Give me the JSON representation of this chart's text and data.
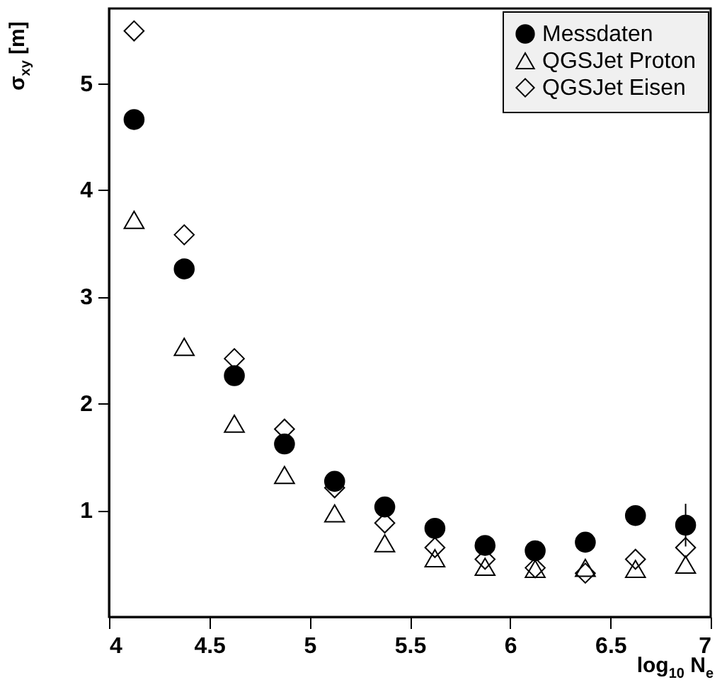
{
  "chart_data": {
    "type": "scatter",
    "xlabel": "log$_{10}$ N$_{e}$",
    "ylabel": "σ$_{xy}$ [m]",
    "x": [
      4.125,
      4.375,
      4.625,
      4.875,
      5.125,
      5.375,
      5.625,
      5.875,
      6.125,
      6.375,
      6.625,
      6.875
    ],
    "series": [
      {
        "name": "Messdaten",
        "color": "#000000",
        "marker": "circle",
        "values": [
          4.66,
          3.26,
          2.26,
          1.62,
          1.27,
          1.03,
          0.83,
          0.67,
          0.62,
          0.7,
          0.95,
          0.86
        ],
        "errors": [
          null,
          null,
          null,
          null,
          null,
          null,
          null,
          null,
          null,
          null,
          null,
          0.2
        ]
      },
      {
        "name": "QGSJet Proton",
        "color": "#000000",
        "marker": "triangle",
        "values": [
          3.72,
          2.53,
          1.81,
          1.33,
          0.97,
          0.69,
          0.55,
          0.47,
          0.45,
          0.46,
          0.45,
          0.49
        ]
      },
      {
        "name": "QGSJet Eisen",
        "color": "#000000",
        "marker": "diamond",
        "values": [
          5.49,
          3.58,
          2.42,
          1.76,
          1.21,
          0.88,
          0.65,
          0.54,
          0.46,
          0.41,
          0.54,
          0.65
        ]
      }
    ],
    "xlim": [
      4,
      7
    ],
    "xticks": [
      4,
      4.5,
      5,
      5.5,
      6,
      6.5,
      7
    ],
    "ylim": [
      0,
      5.7
    ],
    "yticks": [
      1,
      2,
      3,
      4,
      5
    ],
    "grid": false,
    "legend": "top right"
  }
}
